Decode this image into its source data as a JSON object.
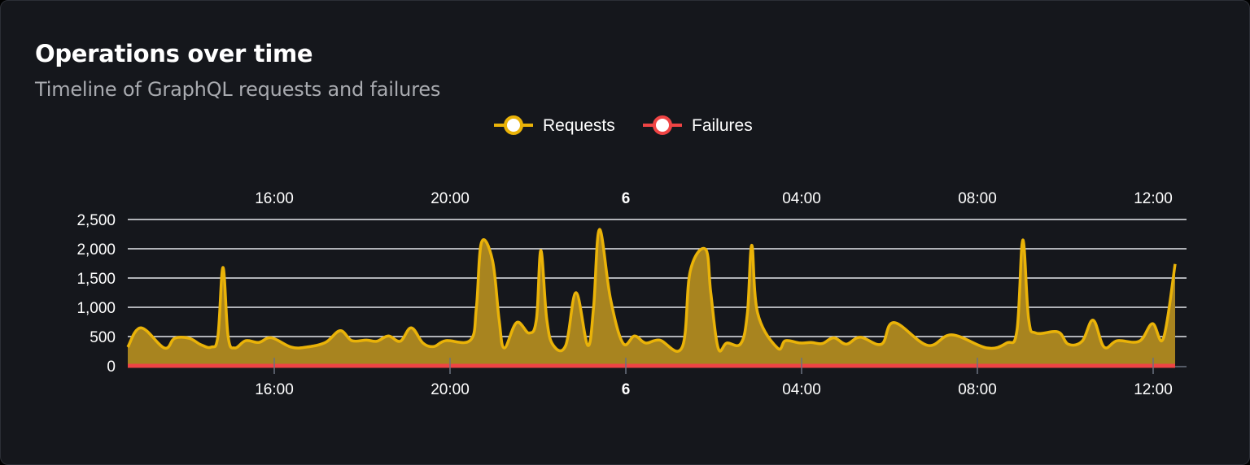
{
  "card": {
    "title": "Operations over time",
    "subtitle": "Timeline of GraphQL requests and failures"
  },
  "chart_data": {
    "type": "area",
    "title": "Operations over time",
    "subtitle": "Timeline of GraphQL requests and failures",
    "legend": {
      "placement": "top",
      "entries": [
        "Requests",
        "Failures"
      ]
    },
    "xlim": [
      "5 12:40",
      "6 12:31"
    ],
    "ylim": [
      0,
      2500
    ],
    "y_ticks": [
      0,
      500,
      1000,
      1500,
      2000,
      2500
    ],
    "y_tick_labels": [
      "0",
      "500",
      "1,000",
      "1,500",
      "2,000",
      "2,500"
    ],
    "x_ticks": [
      {
        "t": "5 16:00",
        "label": "16:00",
        "bold": false
      },
      {
        "t": "5 20:00",
        "label": "20:00",
        "bold": false
      },
      {
        "t": "6 00:00",
        "label": "6",
        "bold": true
      },
      {
        "t": "6 04:00",
        "label": "04:00",
        "bold": false
      },
      {
        "t": "6 08:00",
        "label": "08:00",
        "bold": false
      },
      {
        "t": "6 12:00",
        "label": "12:00",
        "bold": false
      }
    ],
    "grid": true,
    "series": [
      {
        "name": "Requests",
        "color": "#eab308",
        "fill": "#a8841f",
        "points": [
          [
            "5 12:40",
            320
          ],
          [
            "5 12:58",
            650
          ],
          [
            "5 13:30",
            305
          ],
          [
            "5 13:44",
            470
          ],
          [
            "5 14:04",
            470
          ],
          [
            "5 14:20",
            360
          ],
          [
            "5 14:34",
            320
          ],
          [
            "5 14:43",
            500
          ],
          [
            "5 14:50",
            1680
          ],
          [
            "5 14:57",
            500
          ],
          [
            "5 15:06",
            305
          ],
          [
            "5 15:21",
            430
          ],
          [
            "5 15:39",
            400
          ],
          [
            "5 15:56",
            480
          ],
          [
            "5 16:23",
            320
          ],
          [
            "5 16:44",
            320
          ],
          [
            "5 17:10",
            400
          ],
          [
            "5 17:30",
            600
          ],
          [
            "5 17:46",
            430
          ],
          [
            "5 18:06",
            440
          ],
          [
            "5 18:20",
            420
          ],
          [
            "5 18:36",
            510
          ],
          [
            "5 18:52",
            420
          ],
          [
            "5 19:07",
            650
          ],
          [
            "5 19:23",
            390
          ],
          [
            "5 19:38",
            330
          ],
          [
            "5 19:54",
            430
          ],
          [
            "5 20:28",
            440
          ],
          [
            "5 20:36",
            1000
          ],
          [
            "5 20:43",
            2110
          ],
          [
            "5 20:58",
            1800
          ],
          [
            "5 21:07",
            790
          ],
          [
            "5 21:14",
            305
          ],
          [
            "5 21:31",
            740
          ],
          [
            "5 21:48",
            560
          ],
          [
            "5 21:58",
            800
          ],
          [
            "5 22:04",
            1970
          ],
          [
            "5 22:12",
            800
          ],
          [
            "5 22:21",
            350
          ],
          [
            "5 22:38",
            350
          ],
          [
            "5 22:52",
            1250
          ],
          [
            "5 23:08",
            350
          ],
          [
            "5 23:16",
            1000
          ],
          [
            "5 23:24",
            2330
          ],
          [
            "5 23:39",
            1150
          ],
          [
            "5 23:56",
            390
          ],
          [
            "6 00:12",
            510
          ],
          [
            "6 00:27",
            390
          ],
          [
            "6 00:46",
            440
          ],
          [
            "6 01:17",
            320
          ],
          [
            "6 01:28",
            1620
          ],
          [
            "6 01:49",
            1990
          ],
          [
            "6 01:56",
            1250
          ],
          [
            "6 02:06",
            305
          ],
          [
            "6 02:18",
            390
          ],
          [
            "6 02:37",
            380
          ],
          [
            "6 02:46",
            900
          ],
          [
            "6 02:52",
            2060
          ],
          [
            "6 03:00",
            900
          ],
          [
            "6 03:27",
            305
          ],
          [
            "6 03:38",
            430
          ],
          [
            "6 03:58",
            390
          ],
          [
            "6 04:13",
            400
          ],
          [
            "6 04:28",
            380
          ],
          [
            "6 04:44",
            480
          ],
          [
            "6 05:01",
            370
          ],
          [
            "6 05:20",
            490
          ],
          [
            "6 05:49",
            370
          ],
          [
            "6 06:06",
            740
          ],
          [
            "6 06:52",
            350
          ],
          [
            "6 07:25",
            530
          ],
          [
            "6 08:13",
            305
          ],
          [
            "6 08:40",
            390
          ],
          [
            "6 08:54",
            600
          ],
          [
            "6 09:02",
            2150
          ],
          [
            "6 09:10",
            800
          ],
          [
            "6 09:20",
            560
          ],
          [
            "6 09:50",
            580
          ],
          [
            "6 10:04",
            370
          ],
          [
            "6 10:23",
            420
          ],
          [
            "6 10:38",
            780
          ],
          [
            "6 10:53",
            320
          ],
          [
            "6 11:11",
            430
          ],
          [
            "6 11:41",
            420
          ],
          [
            "6 11:59",
            720
          ],
          [
            "6 12:14",
            470
          ],
          [
            "6 12:30",
            1740
          ]
        ]
      },
      {
        "name": "Failures",
        "color": "#ef4444",
        "points": [
          [
            "5 12:40",
            0
          ],
          [
            "6 12:30",
            0
          ]
        ]
      }
    ]
  }
}
